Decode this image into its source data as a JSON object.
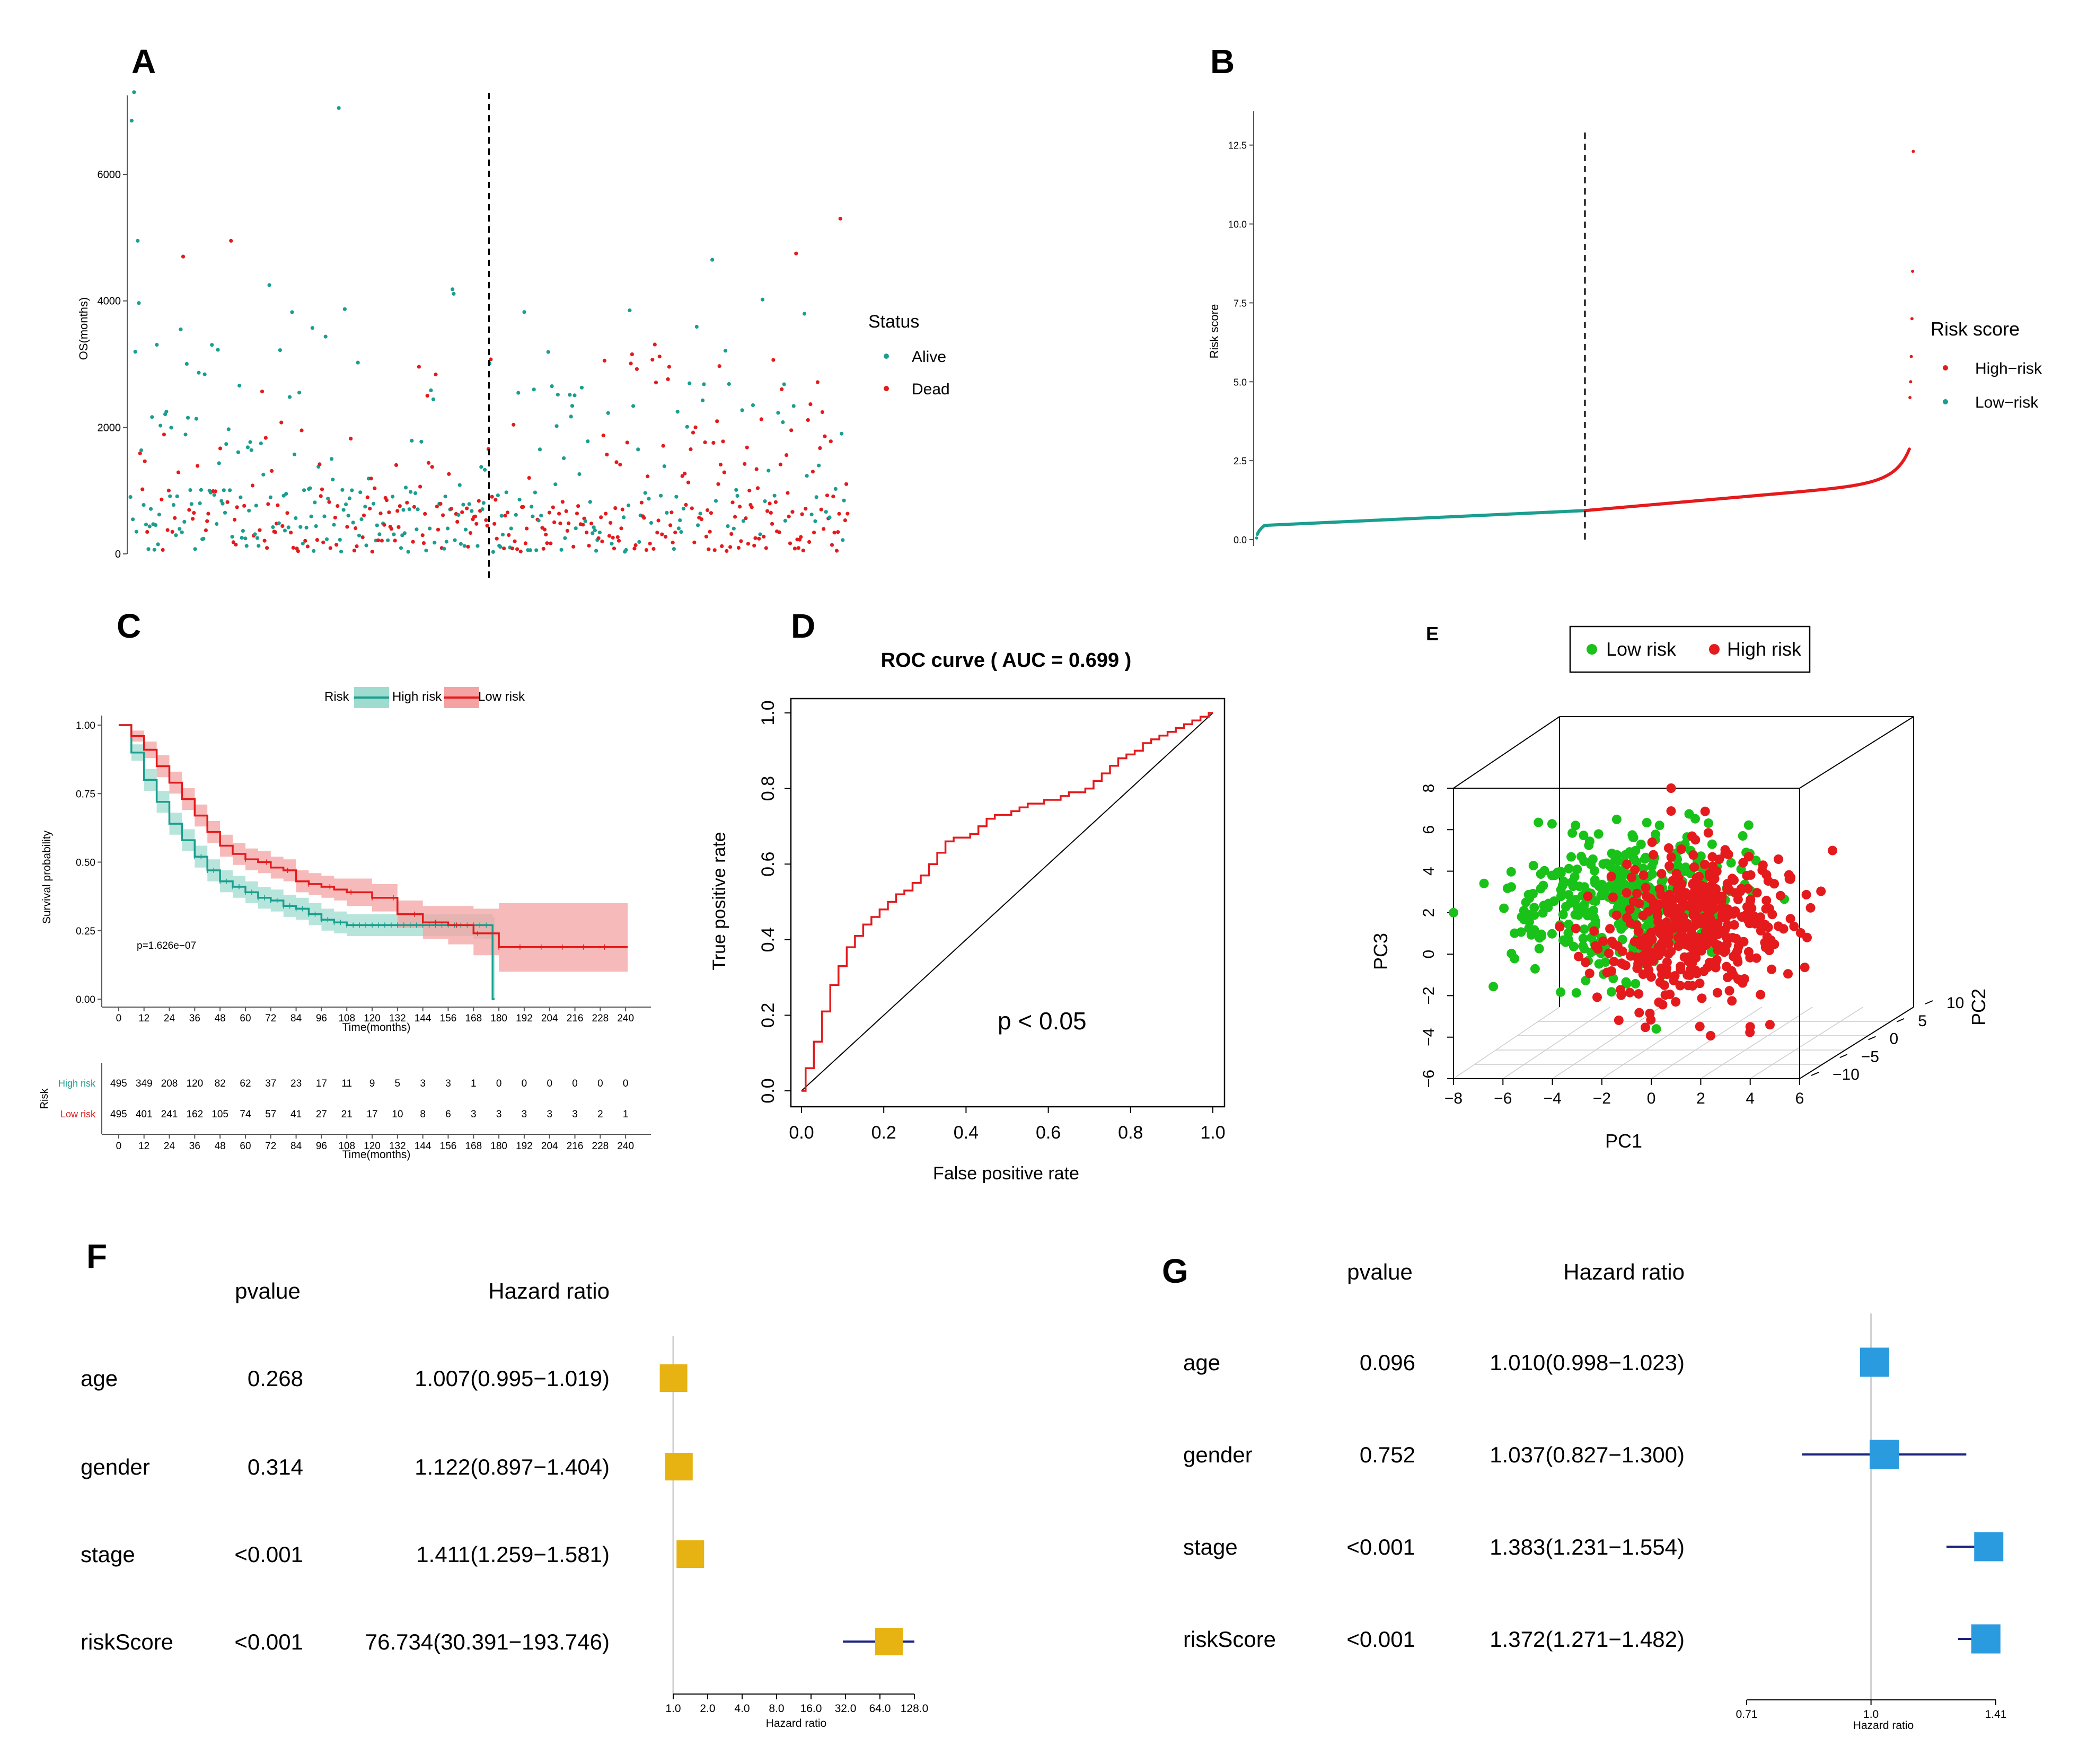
{
  "colors": {
    "teal": "#1a9e8f",
    "red": "#e41a1c",
    "green": "#19c219",
    "pale_red": "#f4a3a3",
    "pale_teal": "#9fdccf",
    "gold": "#e6b312",
    "blue": "#2b9be0",
    "navy": "#1a237e",
    "gray": "#555555",
    "grid": "#cccccc"
  },
  "chart_data": [
    {
      "id": "A",
      "panel_label": "A",
      "type": "scatter",
      "ylabel": "OS(months)",
      "y_ticks": [
        0,
        2000,
        4000,
        6000
      ],
      "ylim": [
        0,
        7500
      ],
      "n": 600,
      "cutoff_index": 299,
      "legend": {
        "title": "Status",
        "entries": [
          "Alive",
          "Dead"
        ]
      },
      "outliers": [
        {
          "i": 3,
          "y": 7300
        },
        {
          "i": 1,
          "y": 6850
        },
        {
          "i": 6,
          "y": 4950
        },
        {
          "i": 174,
          "y": 7050
        },
        {
          "i": 593,
          "y": 5300
        },
        {
          "i": 44,
          "y": 4700
        },
        {
          "i": 84,
          "y": 4950
        },
        {
          "i": 116,
          "y": 4250
        },
        {
          "i": 486,
          "y": 4650
        },
        {
          "i": 556,
          "y": 4750
        }
      ]
    },
    {
      "id": "B",
      "panel_label": "B",
      "type": "line",
      "ylabel": "Risk score",
      "y_ticks": [
        0.0,
        2.5,
        5.0,
        7.5,
        10.0,
        12.5
      ],
      "y_tick_labels": [
        "0.0",
        "2.5",
        "5.0",
        "7.5",
        "10.0",
        "12.5"
      ],
      "ylim": [
        0,
        13.2
      ],
      "n": 990,
      "cutoff_index": 495,
      "legend": {
        "title": "Risk score",
        "entries": [
          "High−risk",
          "Low−risk"
        ]
      },
      "top_points": [
        12.3,
        8.5,
        7.0,
        5.8,
        5.0,
        4.5
      ]
    },
    {
      "id": "C",
      "panel_label": "C",
      "type": "line",
      "subtype": "kaplan-meier",
      "xlabel": "Time(months)",
      "ylabel": "Survival probability",
      "x_ticks": [
        0,
        12,
        24,
        36,
        48,
        60,
        72,
        84,
        96,
        108,
        120,
        132,
        144,
        156,
        168,
        180,
        192,
        204,
        216,
        228,
        240
      ],
      "y_ticks": [
        0.0,
        0.25,
        0.5,
        0.75,
        1.0
      ],
      "y_tick_labels": [
        "0.00",
        "0.25",
        "0.50",
        "0.75",
        "1.00"
      ],
      "xlim": [
        -8,
        252
      ],
      "legend": {
        "title": "Risk",
        "entries": [
          "High risk",
          "Low risk"
        ]
      },
      "pvalue_text": "p=1.626e−07",
      "series": [
        {
          "name": "High risk",
          "t": [
            0,
            6,
            12,
            18,
            24,
            30,
            36,
            42,
            48,
            54,
            60,
            66,
            72,
            78,
            84,
            90,
            96,
            102,
            108,
            120,
            132,
            144,
            156,
            168,
            176,
            177
          ],
          "s": [
            1.0,
            0.9,
            0.8,
            0.72,
            0.64,
            0.58,
            0.52,
            0.47,
            0.43,
            0.41,
            0.39,
            0.37,
            0.36,
            0.34,
            0.33,
            0.31,
            0.29,
            0.28,
            0.27,
            0.27,
            0.27,
            0.27,
            0.27,
            0.27,
            0.27,
            0.0
          ],
          "lo": [
            1.0,
            0.87,
            0.76,
            0.68,
            0.6,
            0.54,
            0.48,
            0.43,
            0.39,
            0.37,
            0.35,
            0.33,
            0.32,
            0.3,
            0.29,
            0.27,
            0.25,
            0.24,
            0.23,
            0.23,
            0.23,
            0.23,
            0.23,
            0.22,
            0.22,
            0.0
          ],
          "hi": [
            1.0,
            0.93,
            0.84,
            0.76,
            0.68,
            0.62,
            0.56,
            0.51,
            0.47,
            0.45,
            0.43,
            0.41,
            0.4,
            0.38,
            0.37,
            0.35,
            0.33,
            0.32,
            0.31,
            0.31,
            0.31,
            0.31,
            0.31,
            0.31,
            0.31,
            0.3
          ]
        },
        {
          "name": "Low risk",
          "t": [
            0,
            6,
            12,
            18,
            24,
            30,
            36,
            42,
            48,
            54,
            60,
            66,
            72,
            78,
            84,
            90,
            96,
            102,
            108,
            120,
            132,
            144,
            156,
            168,
            180,
            192,
            204,
            216,
            228,
            240
          ],
          "s": [
            1.0,
            0.96,
            0.91,
            0.85,
            0.79,
            0.73,
            0.67,
            0.61,
            0.56,
            0.53,
            0.51,
            0.5,
            0.48,
            0.47,
            0.43,
            0.42,
            0.41,
            0.4,
            0.39,
            0.37,
            0.31,
            0.28,
            0.27,
            0.24,
            0.19,
            0.19,
            0.19,
            0.19,
            0.19,
            0.19
          ],
          "lo": [
            1.0,
            0.94,
            0.88,
            0.81,
            0.75,
            0.69,
            0.63,
            0.57,
            0.52,
            0.49,
            0.47,
            0.46,
            0.44,
            0.43,
            0.39,
            0.38,
            0.37,
            0.36,
            0.34,
            0.32,
            0.26,
            0.22,
            0.2,
            0.16,
            0.1,
            0.1,
            0.1,
            0.1,
            0.1,
            0.1
          ],
          "hi": [
            1.0,
            0.98,
            0.94,
            0.89,
            0.83,
            0.77,
            0.71,
            0.65,
            0.6,
            0.57,
            0.55,
            0.54,
            0.52,
            0.51,
            0.47,
            0.46,
            0.45,
            0.44,
            0.44,
            0.42,
            0.36,
            0.34,
            0.34,
            0.33,
            0.35,
            0.35,
            0.35,
            0.35,
            0.35,
            0.35
          ]
        }
      ],
      "risk_table": {
        "rows": [
          {
            "name": "High risk",
            "values": [
              "495",
              "349",
              "208",
              "120",
              "82",
              "62",
              "37",
              "23",
              "17",
              "11",
              "9",
              "5",
              "3",
              "3",
              "1",
              "0",
              "0",
              "0",
              "0",
              "0",
              "0"
            ]
          },
          {
            "name": "Low risk",
            "values": [
              "495",
              "401",
              "241",
              "162",
              "105",
              "74",
              "57",
              "41",
              "27",
              "21",
              "17",
              "10",
              "8",
              "6",
              "3",
              "3",
              "3",
              "3",
              "3",
              "2",
              "1"
            ]
          }
        ],
        "ylabel": "Risk",
        "xlabel": "Time(months)"
      }
    },
    {
      "id": "D",
      "panel_label": "D",
      "type": "line",
      "subtype": "roc",
      "title": "ROC curve ( AUC =  0.699 )",
      "xlabel": "False positive rate",
      "ylabel": "True positive rate",
      "x_ticks": [
        0,
        0.2,
        0.4,
        0.6,
        0.8,
        1.0
      ],
      "x_tick_labels": [
        "0.0",
        "0.2",
        "0.4",
        "0.6",
        "0.8",
        "1.0"
      ],
      "y_ticks": [
        0,
        0.2,
        0.4,
        0.6,
        0.8,
        1.0
      ],
      "y_tick_labels": [
        "0.0",
        "0.2",
        "0.4",
        "0.6",
        "0.8",
        "1.0"
      ],
      "annotation": "p < 0.05",
      "fpr": [
        0,
        0.02,
        0.04,
        0.06,
        0.08,
        0.1,
        0.12,
        0.14,
        0.16,
        0.18,
        0.2,
        0.22,
        0.24,
        0.26,
        0.28,
        0.3,
        0.32,
        0.34,
        0.36,
        0.38,
        0.4,
        0.42,
        0.44,
        0.46,
        0.48,
        0.5,
        0.52,
        0.54,
        0.56,
        0.58,
        0.6,
        0.62,
        0.64,
        0.66,
        0.68,
        0.7,
        0.72,
        0.74,
        0.76,
        0.78,
        0.8,
        0.82,
        0.84,
        0.86,
        0.88,
        0.9,
        0.92,
        0.94,
        0.96,
        0.98,
        1.0
      ],
      "tpr": [
        0,
        0.06,
        0.13,
        0.21,
        0.28,
        0.33,
        0.38,
        0.41,
        0.44,
        0.46,
        0.48,
        0.5,
        0.52,
        0.53,
        0.55,
        0.57,
        0.6,
        0.63,
        0.66,
        0.67,
        0.67,
        0.68,
        0.7,
        0.72,
        0.73,
        0.73,
        0.74,
        0.75,
        0.76,
        0.76,
        0.77,
        0.77,
        0.78,
        0.79,
        0.79,
        0.8,
        0.82,
        0.84,
        0.86,
        0.88,
        0.89,
        0.9,
        0.92,
        0.93,
        0.94,
        0.95,
        0.96,
        0.97,
        0.98,
        0.99,
        1.0
      ]
    },
    {
      "id": "E",
      "panel_label": "E",
      "type": "scatter",
      "subtype": "3d-pca",
      "xlabel": "PC1",
      "ylabel": "PC3",
      "zlabel": "PC2",
      "pc1_ticks": [
        "−8",
        "−6",
        "−4",
        "−2",
        "0",
        "2",
        "4",
        "6"
      ],
      "pc3_ticks": [
        "−6",
        "−4",
        "−2",
        "0",
        "2",
        "4",
        "6",
        "8"
      ],
      "pc2_ticks": [
        "−10",
        "−5",
        "0",
        "5",
        "10"
      ],
      "legend": {
        "entries": [
          "Low risk",
          "High risk"
        ]
      },
      "clusters": [
        {
          "name": "Low risk",
          "n": 380,
          "pc1_mean": -1.0,
          "pc1_sd": 1.9,
          "pc3_mean": 2.6,
          "pc3_sd": 1.5
        },
        {
          "name": "High risk",
          "n": 450,
          "pc1_mean": 1.6,
          "pc1_sd": 1.7,
          "pc3_mean": 1.5,
          "pc3_sd": 1.7
        }
      ],
      "outliers": [
        {
          "name": "High risk",
          "pc1": 0.8,
          "pc3": 8.0
        },
        {
          "name": "High risk",
          "pc1": 0.8,
          "pc3": 6.9
        },
        {
          "name": "Low risk",
          "pc1": -8.0,
          "pc3": 2.0
        },
        {
          "name": "Low risk",
          "pc1": 3.7,
          "pc3": 5.7
        },
        {
          "name": "Low risk",
          "pc1": 0.2,
          "pc3": -3.6
        },
        {
          "name": "High risk",
          "pc1": 4.0,
          "pc3": -3.5
        },
        {
          "name": "High risk",
          "pc1": 4.8,
          "pc3": -3.4
        },
        {
          "name": "High risk",
          "pc1": 6.3,
          "pc3": 0.8
        }
      ]
    },
    {
      "id": "F",
      "panel_label": "F",
      "type": "forest",
      "scale": "log2",
      "xlabel": "Hazard ratio",
      "x_ticks": [
        1,
        2,
        4,
        8,
        16,
        32,
        64,
        128
      ],
      "x_tick_labels": [
        "1.0",
        "2.0",
        "4.0",
        "8.0",
        "16.0",
        "32.0",
        "64.0",
        "128.0"
      ],
      "headers": {
        "pvalue": "pvalue",
        "hr": "Hazard ratio"
      },
      "rows": [
        {
          "var": "age",
          "pvalue": "0.268",
          "hr_text": "1.007(0.995−1.019)",
          "hr": 1.007,
          "lo": 0.995,
          "hi": 1.019
        },
        {
          "var": "gender",
          "pvalue": "0.314",
          "hr_text": "1.122(0.897−1.404)",
          "hr": 1.122,
          "lo": 0.897,
          "hi": 1.404
        },
        {
          "var": "stage",
          "pvalue": "<0.001",
          "hr_text": "1.411(1.259−1.581)",
          "hr": 1.411,
          "lo": 1.259,
          "hi": 1.581
        },
        {
          "var": "riskScore",
          "pvalue": "<0.001",
          "hr_text": "76.734(30.391−193.746)",
          "hr": 76.734,
          "lo": 30.391,
          "hi": 193.746
        }
      ]
    },
    {
      "id": "G",
      "panel_label": "G",
      "type": "forest",
      "scale": "log",
      "xlabel": "Hazard ratio",
      "x_ticks": [
        0.71,
        1.0,
        1.41
      ],
      "x_tick_labels": [
        "0.71",
        "1.0",
        "1.41"
      ],
      "headers": {
        "pvalue": "pvalue",
        "hr": "Hazard ratio"
      },
      "rows": [
        {
          "var": "age",
          "pvalue": "0.096",
          "hr_text": "1.010(0.998−1.023)",
          "hr": 1.01,
          "lo": 0.998,
          "hi": 1.023
        },
        {
          "var": "gender",
          "pvalue": "0.752",
          "hr_text": "1.037(0.827−1.300)",
          "hr": 1.037,
          "lo": 0.827,
          "hi": 1.3
        },
        {
          "var": "stage",
          "pvalue": "<0.001",
          "hr_text": "1.383(1.231−1.554)",
          "hr": 1.383,
          "lo": 1.231,
          "hi": 1.554
        },
        {
          "var": "riskScore",
          "pvalue": "<0.001",
          "hr_text": "1.372(1.271−1.482)",
          "hr": 1.372,
          "lo": 1.271,
          "hi": 1.482
        }
      ]
    }
  ]
}
